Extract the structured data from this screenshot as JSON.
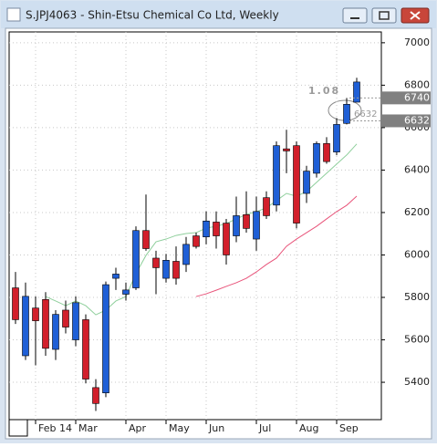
{
  "chart_data": {
    "type": "candlestick",
    "title": "S.JPJ4063 - Shin-Etsu Chemical Co Ltd, Weekly",
    "categories": [
      null,
      null,
      "Feb 14",
      null,
      null,
      null,
      "Mar",
      null,
      null,
      null,
      null,
      "Apr",
      null,
      null,
      null,
      "May",
      null,
      null,
      null,
      "Jun",
      null,
      null,
      null,
      null,
      "Jul",
      null,
      null,
      null,
      "Aug",
      null,
      null,
      null,
      "Sep",
      null,
      null
    ],
    "open": [
      5845,
      5525,
      5750,
      5790,
      5555,
      5740,
      5600,
      5695,
      5375,
      5350,
      5890,
      5815,
      5845,
      6115,
      5985,
      5890,
      5970,
      5955,
      6090,
      6085,
      6155,
      6150,
      6090,
      6190,
      6075,
      6270,
      6235,
      6500,
      6515,
      6290,
      6385,
      6525,
      6485,
      6620,
      6720
    ],
    "high": [
      5920,
      5870,
      5805,
      5825,
      5740,
      5785,
      5805,
      5720,
      5415,
      5875,
      5940,
      5870,
      6135,
      6285,
      6020,
      6005,
      6040,
      6085,
      6105,
      6205,
      6205,
      6170,
      6275,
      6300,
      6275,
      6300,
      6535,
      6590,
      6535,
      6420,
      6535,
      6555,
      6645,
      6740,
      6835
    ],
    "low": [
      5675,
      5505,
      5480,
      5525,
      5505,
      5630,
      5570,
      5395,
      5265,
      5330,
      5835,
      5785,
      5835,
      6020,
      5815,
      5870,
      5860,
      5920,
      6030,
      6050,
      6030,
      5955,
      6060,
      6105,
      6020,
      6170,
      6205,
      6385,
      6125,
      6245,
      6365,
      6430,
      6470,
      6615,
      6720
    ],
    "close": [
      5695,
      5805,
      5690,
      5560,
      5720,
      5660,
      5775,
      5415,
      5300,
      5860,
      5910,
      5835,
      6115,
      6030,
      5940,
      5975,
      5890,
      6050,
      6040,
      6160,
      6090,
      6000,
      6185,
      6125,
      6205,
      6185,
      6515,
      6490,
      6150,
      6395,
      6525,
      6440,
      6615,
      6710,
      6815
    ],
    "up_color": "#1f5fd6",
    "down_color": "#d21f2b",
    "series": [
      {
        "color": "#8fcf9c",
        "values": [
          null,
          null,
          null,
          5804,
          5783,
          5761,
          5783,
          5761,
          5718,
          5740,
          5783,
          5804,
          5912,
          5998,
          6062,
          6075,
          6092,
          6101,
          6105,
          6127,
          6135,
          6148,
          6170,
          6191,
          6204,
          6222,
          6256,
          6290,
          6277,
          6299,
          6342,
          6385,
          6428,
          6471,
          6523
        ]
      },
      {
        "color": "#e8547a",
        "values": [
          null,
          null,
          null,
          null,
          null,
          null,
          null,
          null,
          null,
          null,
          null,
          null,
          null,
          null,
          null,
          null,
          null,
          null,
          5804,
          5817,
          5834,
          5852,
          5869,
          5890,
          5920,
          5955,
          5985,
          6041,
          6075,
          6105,
          6135,
          6170,
          6204,
          6234,
          6277
        ]
      }
    ],
    "price_markers": [
      6740,
      6632
    ],
    "annotation": "1.08",
    "ylim": [
      5224,
      7051
    ],
    "yticks": [
      5400,
      5600,
      5800,
      6000,
      6200,
      6400,
      6600,
      6800,
      7000
    ],
    "grid": true
  }
}
